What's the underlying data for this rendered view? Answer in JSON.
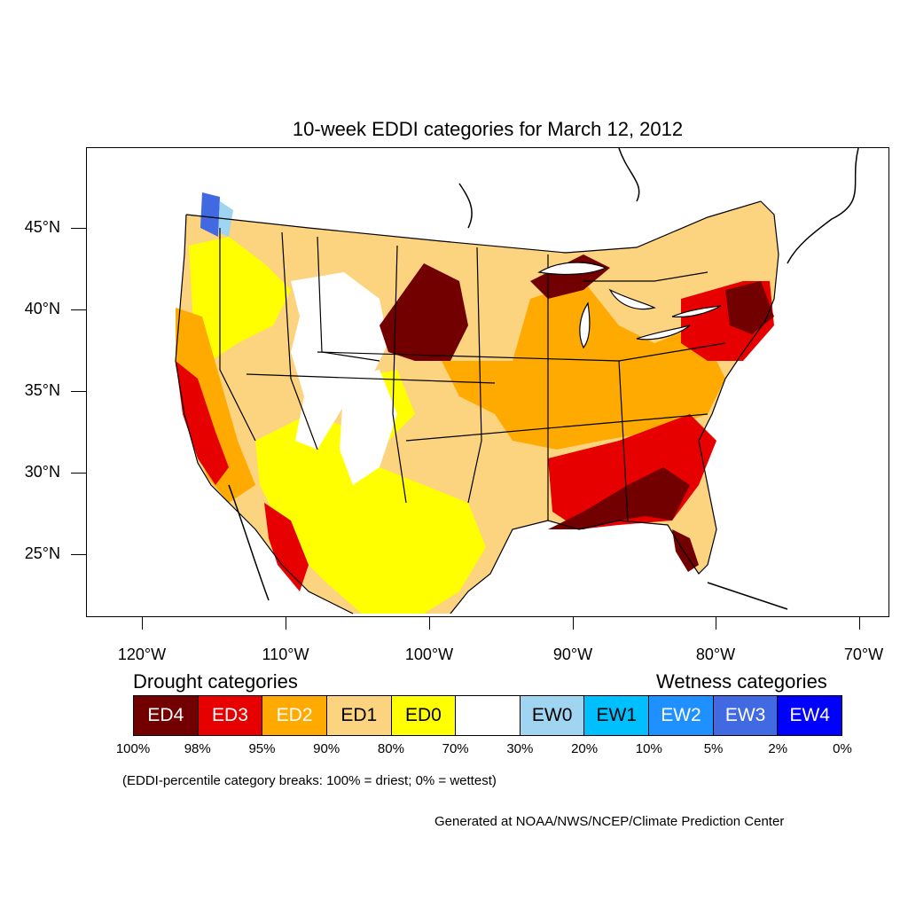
{
  "title": "10-week EDDI categories for March 12, 2012",
  "latitude_labels": [
    "45°N",
    "40°N",
    "35°N",
    "30°N",
    "25°N"
  ],
  "longitude_labels": [
    "120°W",
    "110°W",
    "100°W",
    "90°W",
    "80°W",
    "70°W"
  ],
  "legend": {
    "drought_heading": "Drought categories",
    "wetness_heading": "Wetness categories",
    "categories": [
      {
        "label": "ED4",
        "color": "#730000",
        "text_color": "#ffffff"
      },
      {
        "label": "ED3",
        "color": "#e60000",
        "text_color": "#ffffff"
      },
      {
        "label": "ED2",
        "color": "#ffaa00",
        "text_color": "#ffffff"
      },
      {
        "label": "ED1",
        "color": "#fcd37f",
        "text_color": "#000000"
      },
      {
        "label": "ED0",
        "color": "#ffff00",
        "text_color": "#000000"
      },
      {
        "label": "",
        "color": "#ffffff",
        "text_color": "#000000"
      },
      {
        "label": "EW0",
        "color": "#9fd5f0",
        "text_color": "#000000"
      },
      {
        "label": "EW1",
        "color": "#00bfff",
        "text_color": "#000000"
      },
      {
        "label": "EW2",
        "color": "#1e90ff",
        "text_color": "#ffffff"
      },
      {
        "label": "EW3",
        "color": "#4169e1",
        "text_color": "#ffffff"
      },
      {
        "label": "EW4",
        "color": "#0000ff",
        "text_color": "#ffffff"
      }
    ],
    "breaks": [
      "100%",
      "98%",
      "95%",
      "90%",
      "80%",
      "70%",
      "30%",
      "20%",
      "10%",
      "5%",
      "2%",
      "0%"
    ]
  },
  "note": "(EDDI-percentile category breaks: 100% = driest; 0% = wettest)",
  "credit": "Generated at NOAA/NWS/NCEP/Climate Prediction Center"
}
